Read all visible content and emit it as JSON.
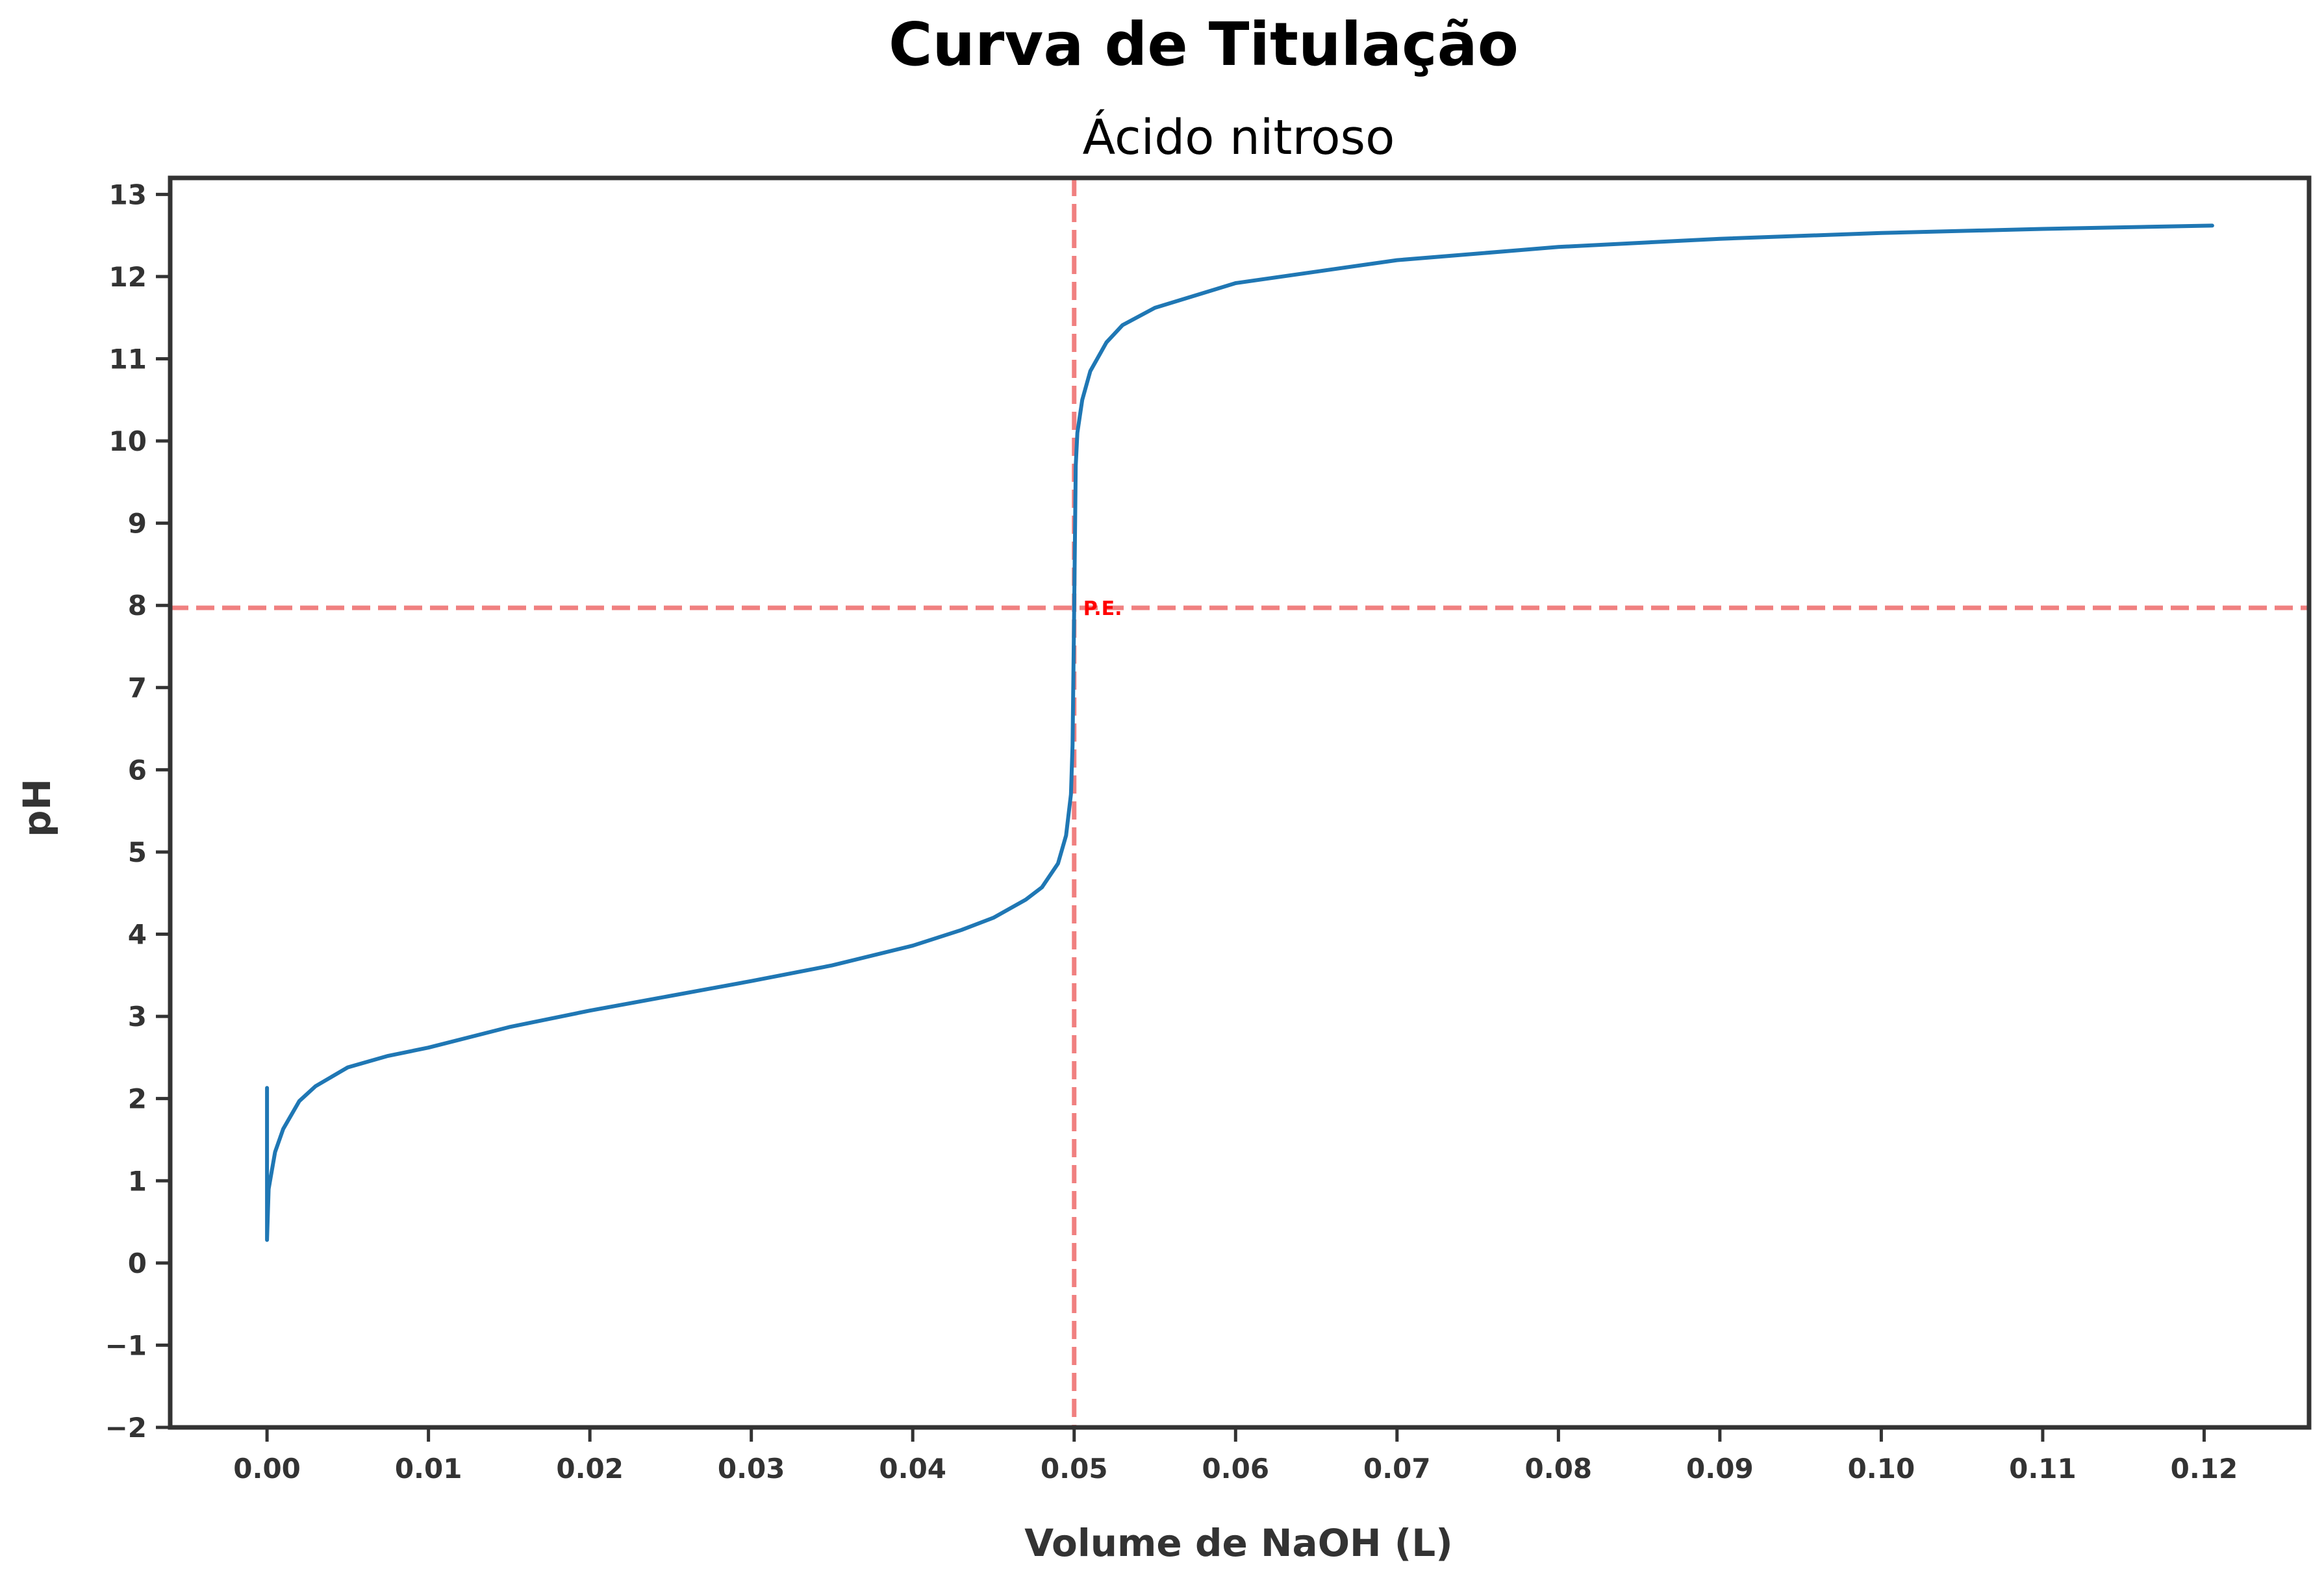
{
  "chart_data": {
    "type": "line",
    "title": "Curva de Titulação",
    "subtitle": "Ácido nitroso",
    "xlabel": "Volume de NaOH (L)",
    "ylabel": "pH",
    "xlim": [
      -0.006,
      0.1265
    ],
    "ylim": [
      -2,
      13.2
    ],
    "xticks": [
      "0.00",
      "0.01",
      "0.02",
      "0.03",
      "0.04",
      "0.05",
      "0.06",
      "0.07",
      "0.08",
      "0.09",
      "0.10",
      "0.11",
      "0.12"
    ],
    "yticks": [
      "−2",
      "−1",
      "0",
      "1",
      "2",
      "3",
      "4",
      "5",
      "6",
      "7",
      "8",
      "9",
      "10",
      "11",
      "12",
      "13"
    ],
    "grid": false,
    "line_color": "#1f77b4",
    "reference_color": "#f08080",
    "equivalence_point": {
      "x": 0.05,
      "y": 7.97,
      "label": "P.E."
    },
    "series": [
      {
        "x": [
          0.0,
          0.0,
          0.0001,
          0.0005,
          0.001,
          0.002,
          0.003,
          0.005,
          0.0075,
          0.01,
          0.015,
          0.02,
          0.025,
          0.03,
          0.035,
          0.04,
          0.043,
          0.045,
          0.047,
          0.048,
          0.049,
          0.0495,
          0.0498,
          0.0499,
          0.05,
          0.0501,
          0.0502,
          0.0505,
          0.051,
          0.052,
          0.053,
          0.055,
          0.06,
          0.07,
          0.08,
          0.09,
          0.1,
          0.11,
          0.1205
        ],
        "y": [
          2.13,
          0.28,
          0.9,
          1.35,
          1.63,
          1.97,
          2.15,
          2.38,
          2.52,
          2.62,
          2.87,
          3.07,
          3.25,
          3.43,
          3.62,
          3.86,
          4.05,
          4.2,
          4.42,
          4.57,
          4.86,
          5.2,
          5.7,
          6.3,
          7.97,
          9.7,
          10.1,
          10.5,
          10.85,
          11.2,
          11.41,
          11.62,
          11.92,
          12.2,
          12.36,
          12.46,
          12.53,
          12.58,
          12.62
        ]
      }
    ]
  }
}
